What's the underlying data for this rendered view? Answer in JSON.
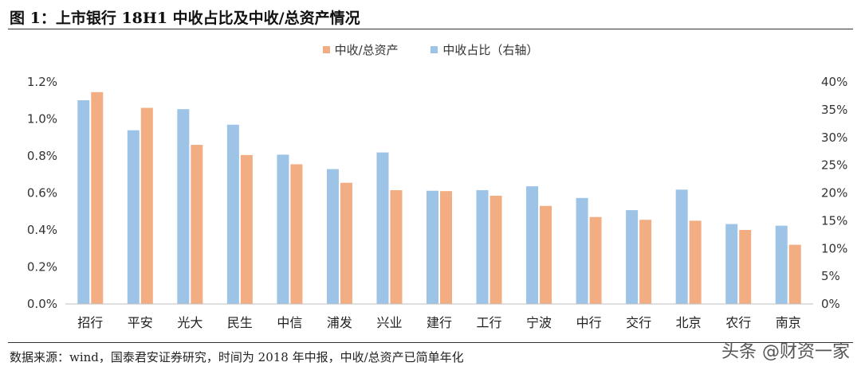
{
  "title": "图 1：上市银行 18H1 中收占比及中收/总资产情况",
  "source": "数据来源：wind，国泰君安证券研究，时间为 2018 年中报，中收/总资产已简单年化",
  "watermark": "头条 @财资一家",
  "legend": {
    "position": "top-center",
    "items": [
      {
        "label": "中收/总资产",
        "color": "#F2AE82"
      },
      {
        "label": "中收占比（右轴）",
        "color": "#9DC3E6"
      }
    ]
  },
  "chart_data": {
    "type": "bar",
    "categories": [
      "招行",
      "平安",
      "光大",
      "民生",
      "中信",
      "浦发",
      "兴业",
      "建行",
      "工行",
      "宁波",
      "中行",
      "交行",
      "北京",
      "农行",
      "南京"
    ],
    "series": [
      {
        "name": "中收占比（右轴）",
        "axis": "right",
        "color": "#9DC3E6",
        "values": [
          0.367,
          0.313,
          0.351,
          0.323,
          0.269,
          0.243,
          0.273,
          0.204,
          0.205,
          0.212,
          0.191,
          0.169,
          0.206,
          0.144,
          0.141
        ]
      },
      {
        "name": "中收/总资产",
        "axis": "left",
        "color": "#F2AE82",
        "values": [
          0.01145,
          0.0106,
          0.0086,
          0.00805,
          0.00755,
          0.00655,
          0.00615,
          0.0061,
          0.00585,
          0.0053,
          0.0047,
          0.00455,
          0.0045,
          0.004,
          0.0032
        ]
      }
    ],
    "y_left": {
      "ylim": [
        0,
        0.012
      ],
      "ticks": [
        0,
        0.002,
        0.004,
        0.006,
        0.008,
        0.01,
        0.012
      ],
      "tick_labels": [
        "0.0%",
        "0.2%",
        "0.4%",
        "0.6%",
        "0.8%",
        "1.0%",
        "1.2%"
      ]
    },
    "y_right": {
      "ylim": [
        0,
        0.4
      ],
      "ticks": [
        0,
        0.05,
        0.1,
        0.15,
        0.2,
        0.25,
        0.3,
        0.35,
        0.4
      ],
      "tick_labels": [
        "0%",
        "5%",
        "10%",
        "15%",
        "20%",
        "25%",
        "30%",
        "35%",
        "40%"
      ]
    },
    "grid": false
  }
}
